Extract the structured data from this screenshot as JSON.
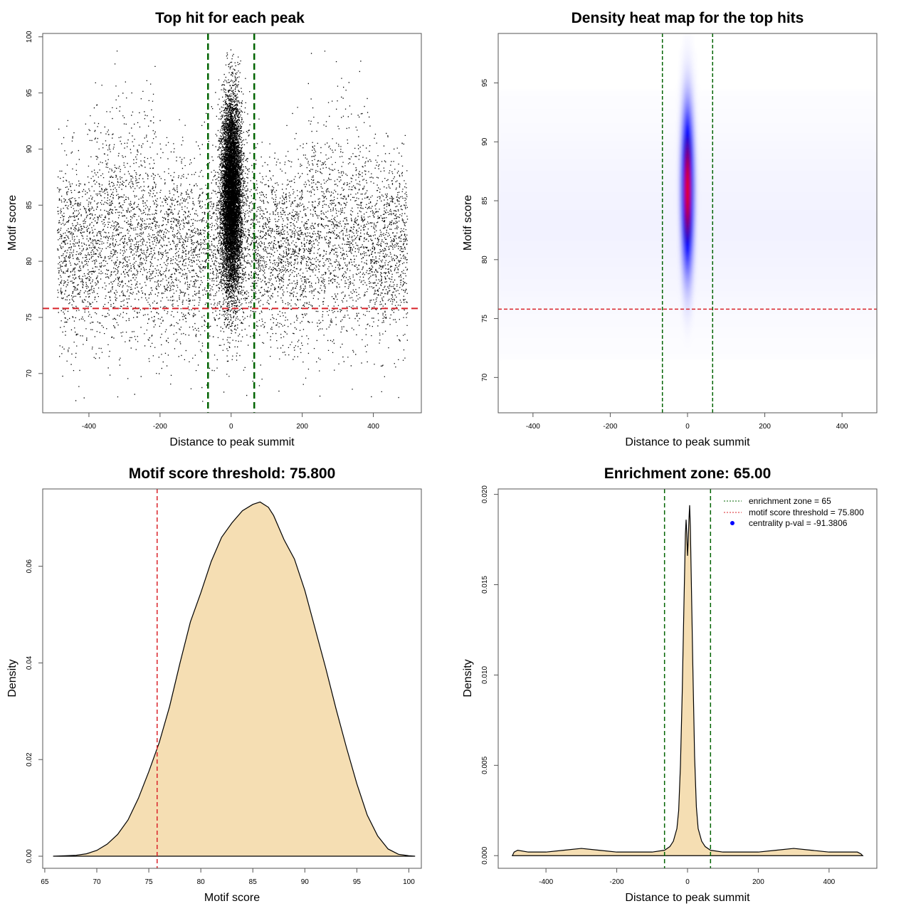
{
  "chart_data": [
    {
      "id": "p1",
      "type": "scatter",
      "title": "Top hit for each peak",
      "xlabel": "Distance to peak summit",
      "ylabel": "Motif score",
      "xlim": [
        -530,
        535
      ],
      "ylim": [
        66.5,
        100.3
      ],
      "xticks": [
        -400,
        -200,
        0,
        200,
        400
      ],
      "xtick_labels": [
        "-400",
        "-200",
        "0",
        "200",
        "400"
      ],
      "yticks": [
        70,
        75,
        80,
        85,
        90,
        95,
        100
      ],
      "ytick_labels": [
        "70",
        "75",
        "80",
        "85",
        "90",
        "95",
        "100"
      ],
      "vlines": [
        -65,
        65
      ],
      "vline_color": "#006400",
      "hline": 75.8,
      "hline_color": "#d9232a",
      "point_color": "#000000",
      "distribution": {
        "central_x_sd": 14,
        "central_y_mean": 86,
        "central_y_sd": 4.2,
        "background_x_range": [
          -490,
          495
        ],
        "background_y_mean": 81,
        "background_y_sd": 4.2
      }
    },
    {
      "id": "p2",
      "type": "heatmap",
      "title": "Density heat map for the top hits",
      "xlabel": "Distance to peak summit",
      "ylabel": "Motif score",
      "xlim": [
        -490,
        490
      ],
      "ylim": [
        67,
        99.2
      ],
      "xticks": [
        -400,
        -200,
        0,
        200,
        400
      ],
      "xtick_labels": [
        "-400",
        "-200",
        "0",
        "200",
        "400"
      ],
      "yticks": [
        70,
        75,
        80,
        85,
        90,
        95
      ],
      "ytick_labels": [
        "70",
        "75",
        "80",
        "85",
        "90",
        "95"
      ],
      "vlines": [
        -65,
        65
      ],
      "vline_color": "#006400",
      "hline": 75.8,
      "hline_color": "#d9232a",
      "colors": [
        "#ffffff",
        "#0000ff",
        "#ff0000"
      ],
      "peak": {
        "x": 0,
        "y": 86,
        "x_sd": 10,
        "y_sd": 4.3
      }
    },
    {
      "id": "p3",
      "type": "area",
      "title": "Motif score threshold: 75.800",
      "xlabel": "Motif score",
      "ylabel": "Density",
      "xlim": [
        64.8,
        101.2
      ],
      "ylim": [
        -0.0025,
        0.076
      ],
      "xticks": [
        65,
        70,
        75,
        80,
        85,
        90,
        95,
        100
      ],
      "xtick_labels": [
        "65",
        "70",
        "75",
        "80",
        "85",
        "90",
        "95",
        "100"
      ],
      "yticks": [
        0,
        0.02,
        0.04,
        0.06
      ],
      "ytick_labels": [
        "0.00",
        "0.02",
        "0.04",
        "0.06"
      ],
      "fill": "#f5deb3",
      "vlines": [
        75.8
      ],
      "vline_color": "#d9232a",
      "x": [
        65.8,
        67,
        68,
        69,
        70,
        71,
        72,
        73,
        74,
        75,
        76,
        77,
        78,
        79,
        80,
        81,
        82,
        83,
        84,
        85,
        85.7,
        86.5,
        87,
        88,
        89,
        90,
        91,
        92,
        93,
        94,
        95,
        96,
        97,
        98,
        99,
        100,
        100.6
      ],
      "y": [
        0,
        0.0001,
        0.0002,
        0.0005,
        0.0012,
        0.0025,
        0.0045,
        0.0075,
        0.012,
        0.0175,
        0.0235,
        0.031,
        0.04,
        0.0485,
        0.0545,
        0.061,
        0.066,
        0.069,
        0.0715,
        0.0728,
        0.0733,
        0.0722,
        0.0705,
        0.0655,
        0.0615,
        0.055,
        0.047,
        0.039,
        0.0305,
        0.0225,
        0.015,
        0.0085,
        0.0042,
        0.0015,
        0.0004,
        0.0001,
        0
      ]
    },
    {
      "id": "p4",
      "type": "area",
      "title": "Enrichment zone: 65.00",
      "xlabel": "Distance to peak summit",
      "ylabel": "Density",
      "xlim": [
        -535,
        535
      ],
      "ylim": [
        -0.0007,
        0.0203
      ],
      "xticks": [
        -400,
        -200,
        0,
        200,
        400
      ],
      "xtick_labels": [
        "-400",
        "-200",
        "0",
        "200",
        "400"
      ],
      "yticks": [
        0,
        0.005,
        0.01,
        0.015,
        0.02
      ],
      "ytick_labels": [
        "0.000",
        "0.005",
        "0.010",
        "0.015",
        "0.020"
      ],
      "fill": "#f5deb3",
      "vlines": [
        -65,
        65
      ],
      "vline_color": "#006400",
      "x": [
        -495,
        -490,
        -480,
        -450,
        -400,
        -350,
        -300,
        -250,
        -200,
        -150,
        -100,
        -65,
        -50,
        -40,
        -30,
        -25,
        -20,
        -15,
        -10,
        -6,
        -4,
        -2,
        0,
        2,
        4,
        6,
        8,
        10,
        15,
        20,
        25,
        30,
        40,
        50,
        65,
        100,
        150,
        200,
        250,
        300,
        350,
        400,
        450,
        480,
        490,
        495
      ],
      "y": [
        0,
        0.0002,
        0.0003,
        0.0002,
        0.0002,
        0.0003,
        0.0004,
        0.0003,
        0.0002,
        0.0002,
        0.0002,
        0.0003,
        0.0005,
        0.0008,
        0.0015,
        0.0025,
        0.005,
        0.009,
        0.014,
        0.0178,
        0.0186,
        0.0178,
        0.0166,
        0.0174,
        0.0186,
        0.0194,
        0.0182,
        0.016,
        0.0105,
        0.0055,
        0.0027,
        0.0015,
        0.0008,
        0.0005,
        0.0003,
        0.0002,
        0.0002,
        0.0002,
        0.0003,
        0.0004,
        0.0003,
        0.0002,
        0.0002,
        0.0002,
        0.0001,
        0
      ],
      "legend": {
        "placement": "top-right",
        "items": [
          {
            "label": "enrichment zone = 65",
            "style": "dotted",
            "color": "#006400"
          },
          {
            "label": "motif score threshold = 75.800",
            "style": "dotted",
            "color": "#d9232a"
          },
          {
            "label": "centrality p-val = -91.3806",
            "style": "point",
            "color": "#0000ff"
          }
        ]
      }
    }
  ]
}
